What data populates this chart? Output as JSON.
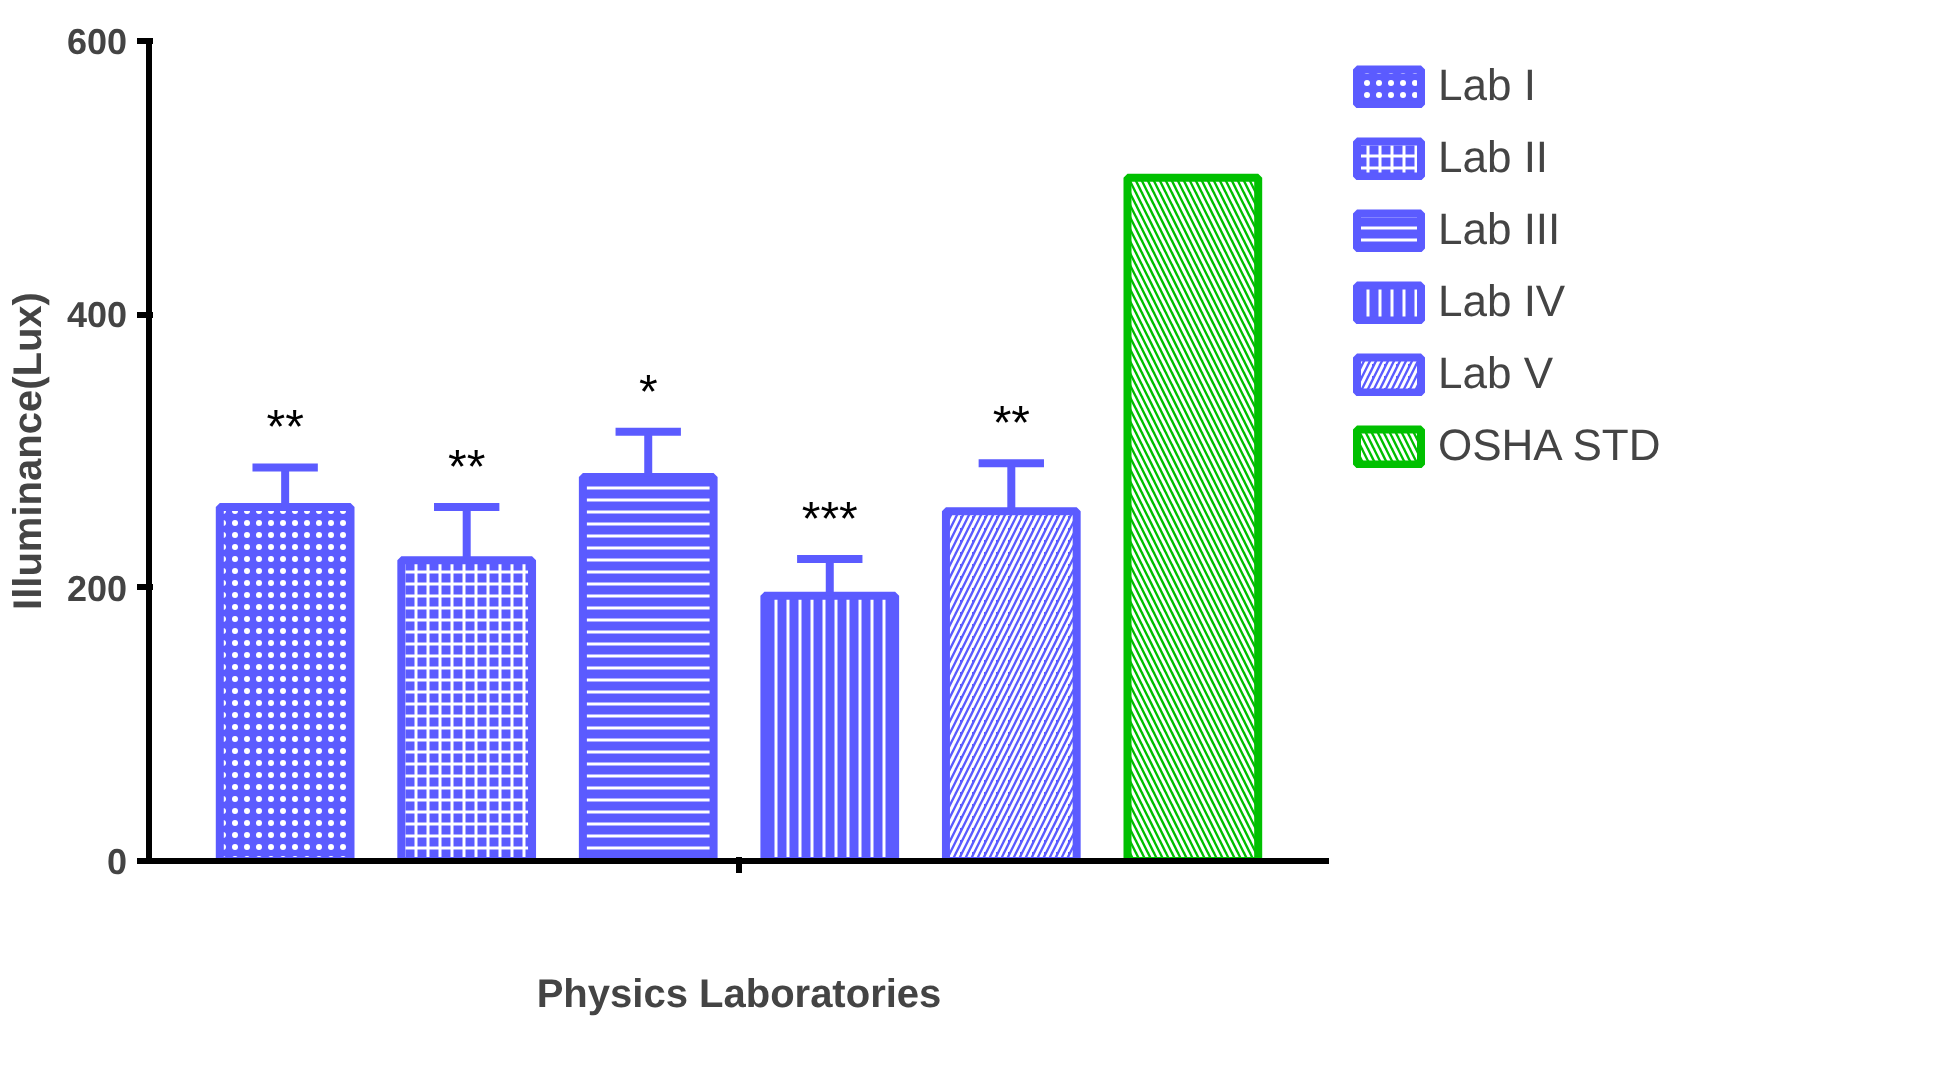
{
  "chart_data": {
    "type": "bar",
    "xlabel": "Physics Laboratories",
    "ylabel": "Illuminance(Lux)",
    "categories": [
      null,
      null,
      null,
      null,
      null,
      null
    ],
    "series": [
      {
        "name": "Lab I",
        "color": "#5b5bff",
        "values": [
          259,
          null,
          null,
          null,
          null,
          null
        ],
        "errors": [
          [
            259,
            288
          ],
          null,
          null,
          null,
          null,
          null
        ]
      },
      {
        "name": "Lab II",
        "color": "#5b5bff",
        "values": [
          null,
          220,
          null,
          null,
          null,
          null
        ],
        "errors": [
          null,
          [
            220,
            259
          ],
          null,
          null,
          null,
          null
        ]
      },
      {
        "name": "Lab III",
        "color": "#5b5bff",
        "values": [
          null,
          null,
          281,
          null,
          null,
          null
        ],
        "errors": [
          null,
          null,
          [
            281,
            314
          ],
          null,
          null,
          null
        ]
      },
      {
        "name": "Lab IV",
        "color": "#5b5bff",
        "values": [
          null,
          null,
          null,
          194,
          null,
          null
        ],
        "errors": [
          null,
          null,
          null,
          [
            194,
            221
          ],
          null,
          null
        ]
      },
      {
        "name": "Lab V",
        "color": "#5b5bff",
        "values": [
          null,
          null,
          null,
          null,
          256,
          null
        ],
        "errors": [
          null,
          null,
          null,
          null,
          [
            256,
            291
          ],
          null
        ]
      },
      {
        "name": "OSHA STD",
        "color": "#00c000",
        "values": [
          null,
          null,
          null,
          null,
          null,
          500
        ]
      }
    ],
    "annotations": [
      {
        "text": "**",
        "y": 288
      },
      {
        "text": "**",
        "y": 259
      },
      {
        "text": "*",
        "y": 314
      },
      {
        "text": "***",
        "y": 221
      },
      {
        "text": "**",
        "y": 291
      }
    ],
    "ylim": [
      0,
      600
    ],
    "yticks": [
      0,
      200,
      400,
      600
    ],
    "grid": false,
    "legend": "right",
    "tick_labels": "y"
  }
}
